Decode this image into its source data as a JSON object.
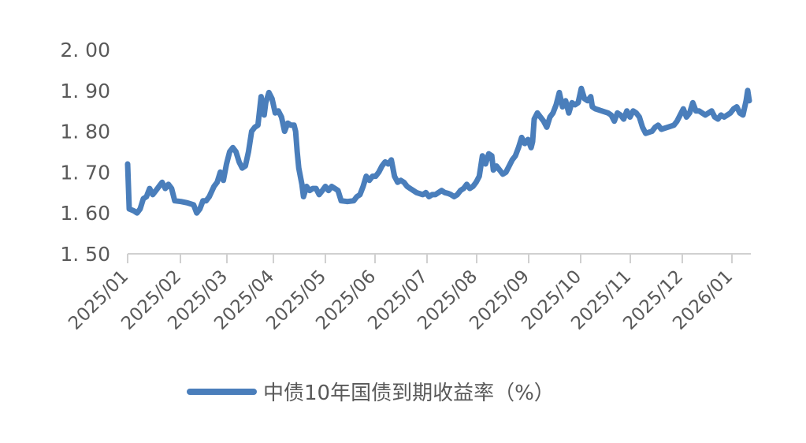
{
  "chart_data": {
    "type": "line",
    "title": "",
    "xlabel": "",
    "ylabel": "",
    "ylim": [
      1.5,
      2.0
    ],
    "yticks": [
      "2.00",
      "1.90",
      "1.80",
      "1.70",
      "1.60",
      "1.50"
    ],
    "grid": false,
    "legend_position": "bottom",
    "categories": [
      "2025/01",
      "2025/02",
      "2025/03",
      "2025/04",
      "2025/05",
      "2025/06",
      "2025/07",
      "2025/08",
      "2025/09",
      "2025/10",
      "2025/11",
      "2025/12",
      "2026/01"
    ],
    "series": [
      {
        "name": "中债10年国债到期收益率（%）",
        "color": "#4a7ebb",
        "points": [
          [
            0,
            1.72
          ],
          [
            1,
            1.61
          ],
          [
            4,
            1.605
          ],
          [
            6,
            1.6
          ],
          [
            8,
            1.61
          ],
          [
            10,
            1.635
          ],
          [
            12,
            1.64
          ],
          [
            14,
            1.66
          ],
          [
            16,
            1.645
          ],
          [
            18,
            1.655
          ],
          [
            20,
            1.665
          ],
          [
            22,
            1.675
          ],
          [
            24,
            1.66
          ],
          [
            26,
            1.67
          ],
          [
            28,
            1.66
          ],
          [
            30,
            1.63
          ],
          [
            34,
            1.628
          ],
          [
            38,
            1.625
          ],
          [
            42,
            1.62
          ],
          [
            44,
            1.6
          ],
          [
            46,
            1.61
          ],
          [
            48,
            1.63
          ],
          [
            50,
            1.63
          ],
          [
            52,
            1.64
          ],
          [
            55,
            1.665
          ],
          [
            57,
            1.675
          ],
          [
            59,
            1.7
          ],
          [
            61,
            1.68
          ],
          [
            63,
            1.72
          ],
          [
            65,
            1.75
          ],
          [
            67,
            1.76
          ],
          [
            69,
            1.75
          ],
          [
            71,
            1.725
          ],
          [
            73,
            1.71
          ],
          [
            75,
            1.715
          ],
          [
            77,
            1.75
          ],
          [
            79,
            1.8
          ],
          [
            81,
            1.81
          ],
          [
            83,
            1.815
          ],
          [
            85,
            1.885
          ],
          [
            87,
            1.84
          ],
          [
            88,
            1.87
          ],
          [
            90,
            1.895
          ],
          [
            92,
            1.88
          ],
          [
            94,
            1.845
          ],
          [
            96,
            1.85
          ],
          [
            98,
            1.835
          ],
          [
            100,
            1.8
          ],
          [
            102,
            1.82
          ],
          [
            104,
            1.815
          ],
          [
            106,
            1.815
          ],
          [
            107,
            1.8
          ],
          [
            108,
            1.75
          ],
          [
            109,
            1.71
          ],
          [
            111,
            1.67
          ],
          [
            112,
            1.64
          ],
          [
            114,
            1.665
          ],
          [
            116,
            1.655
          ],
          [
            118,
            1.66
          ],
          [
            120,
            1.66
          ],
          [
            122,
            1.645
          ],
          [
            124,
            1.655
          ],
          [
            126,
            1.665
          ],
          [
            128,
            1.655
          ],
          [
            130,
            1.665
          ],
          [
            132,
            1.66
          ],
          [
            134,
            1.655
          ],
          [
            136,
            1.63
          ],
          [
            140,
            1.628
          ],
          [
            144,
            1.63
          ],
          [
            146,
            1.64
          ],
          [
            148,
            1.645
          ],
          [
            150,
            1.665
          ],
          [
            152,
            1.69
          ],
          [
            154,
            1.68
          ],
          [
            156,
            1.69
          ],
          [
            158,
            1.69
          ],
          [
            160,
            1.7
          ],
          [
            162,
            1.715
          ],
          [
            164,
            1.725
          ],
          [
            166,
            1.72
          ],
          [
            168,
            1.73
          ],
          [
            170,
            1.69
          ],
          [
            172,
            1.675
          ],
          [
            174,
            1.68
          ],
          [
            176,
            1.675
          ],
          [
            178,
            1.665
          ],
          [
            180,
            1.66
          ],
          [
            182,
            1.655
          ],
          [
            184,
            1.65
          ],
          [
            188,
            1.645
          ],
          [
            190,
            1.65
          ],
          [
            192,
            1.64
          ],
          [
            194,
            1.645
          ],
          [
            196,
            1.645
          ],
          [
            198,
            1.65
          ],
          [
            200,
            1.655
          ],
          [
            202,
            1.65
          ],
          [
            204,
            1.648
          ],
          [
            206,
            1.645
          ],
          [
            208,
            1.64
          ],
          [
            210,
            1.645
          ],
          [
            212,
            1.655
          ],
          [
            214,
            1.66
          ],
          [
            216,
            1.67
          ],
          [
            218,
            1.66
          ],
          [
            220,
            1.665
          ],
          [
            222,
            1.675
          ],
          [
            224,
            1.69
          ],
          [
            226,
            1.74
          ],
          [
            228,
            1.72
          ],
          [
            230,
            1.745
          ],
          [
            232,
            1.74
          ],
          [
            233,
            1.705
          ],
          [
            235,
            1.715
          ],
          [
            237,
            1.705
          ],
          [
            239,
            1.695
          ],
          [
            241,
            1.7
          ],
          [
            243,
            1.715
          ],
          [
            245,
            1.73
          ],
          [
            247,
            1.74
          ],
          [
            249,
            1.76
          ],
          [
            251,
            1.785
          ],
          [
            253,
            1.77
          ],
          [
            255,
            1.78
          ],
          [
            257,
            1.76
          ],
          [
            258,
            1.775
          ],
          [
            259,
            1.83
          ],
          [
            261,
            1.845
          ],
          [
            263,
            1.835
          ],
          [
            265,
            1.825
          ],
          [
            267,
            1.81
          ],
          [
            269,
            1.835
          ],
          [
            271,
            1.845
          ],
          [
            273,
            1.865
          ],
          [
            275,
            1.895
          ],
          [
            277,
            1.86
          ],
          [
            279,
            1.875
          ],
          [
            281,
            1.845
          ],
          [
            283,
            1.87
          ],
          [
            285,
            1.865
          ],
          [
            287,
            1.87
          ],
          [
            289,
            1.905
          ],
          [
            291,
            1.88
          ],
          [
            293,
            1.875
          ],
          [
            295,
            1.885
          ],
          [
            296,
            1.86
          ],
          [
            298,
            1.855
          ],
          [
            302,
            1.85
          ],
          [
            306,
            1.845
          ],
          [
            308,
            1.84
          ],
          [
            310,
            1.825
          ],
          [
            312,
            1.845
          ],
          [
            314,
            1.84
          ],
          [
            316,
            1.83
          ],
          [
            318,
            1.85
          ],
          [
            320,
            1.835
          ],
          [
            322,
            1.85
          ],
          [
            324,
            1.845
          ],
          [
            326,
            1.835
          ],
          [
            328,
            1.81
          ],
          [
            330,
            1.795
          ],
          [
            334,
            1.8
          ],
          [
            336,
            1.81
          ],
          [
            338,
            1.815
          ],
          [
            340,
            1.805
          ],
          [
            344,
            1.81
          ],
          [
            348,
            1.815
          ],
          [
            350,
            1.825
          ],
          [
            352,
            1.84
          ],
          [
            354,
            1.855
          ],
          [
            356,
            1.835
          ],
          [
            358,
            1.845
          ],
          [
            360,
            1.87
          ],
          [
            362,
            1.85
          ],
          [
            364,
            1.85
          ],
          [
            366,
            1.845
          ],
          [
            368,
            1.84
          ],
          [
            370,
            1.845
          ],
          [
            372,
            1.85
          ],
          [
            374,
            1.835
          ],
          [
            376,
            1.83
          ],
          [
            378,
            1.84
          ],
          [
            380,
            1.835
          ],
          [
            382,
            1.84
          ],
          [
            384,
            1.845
          ],
          [
            386,
            1.855
          ],
          [
            388,
            1.86
          ],
          [
            390,
            1.845
          ],
          [
            392,
            1.84
          ],
          [
            394,
            1.875
          ],
          [
            395,
            1.9
          ],
          [
            396,
            1.875
          ]
        ]
      }
    ]
  },
  "legend": {
    "label": "中债10年国债到期收益率（%）"
  }
}
